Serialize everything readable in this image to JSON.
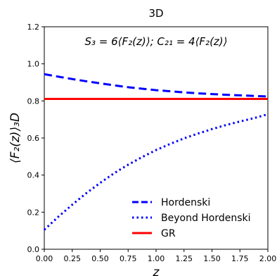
{
  "chart_data": {
    "type": "line",
    "title": "3D",
    "annotation": "S₃ = 6⟨F₂(z)⟩;  C₂₁ = 4⟨F₂(z)⟩",
    "xlabel": "z",
    "ylabel": "⟨F₂(z)⟩₃D",
    "xlim": [
      0.0,
      2.0
    ],
    "ylim": [
      0.0,
      1.2
    ],
    "xticks": [
      "0.00",
      "0.25",
      "0.50",
      "0.75",
      "1.00",
      "1.25",
      "1.50",
      "1.75",
      "2.00"
    ],
    "yticks": [
      "0.0",
      "0.2",
      "0.4",
      "0.6",
      "0.8",
      "1.0",
      "1.2"
    ],
    "grid": false,
    "legend_position": "bottom-right",
    "x": [
      0.0,
      0.125,
      0.25,
      0.375,
      0.5,
      0.625,
      0.75,
      0.875,
      1.0,
      1.125,
      1.25,
      1.375,
      1.5,
      1.625,
      1.75,
      1.875,
      2.0
    ],
    "series": [
      {
        "name": "Hordenski",
        "style": "dashed",
        "color": "#0000ff",
        "values": [
          0.944,
          0.931,
          0.918,
          0.906,
          0.895,
          0.884,
          0.874,
          0.866,
          0.858,
          0.852,
          0.846,
          0.841,
          0.837,
          0.833,
          0.83,
          0.827,
          0.824
        ]
      },
      {
        "name": "Beyond Hordenski",
        "style": "dotted",
        "color": "#0000ff",
        "values": [
          0.105,
          0.175,
          0.24,
          0.302,
          0.358,
          0.41,
          0.456,
          0.497,
          0.535,
          0.568,
          0.598,
          0.624,
          0.648,
          0.67,
          0.689,
          0.707,
          0.728
        ]
      },
      {
        "name": "GR",
        "style": "solid",
        "color": "#ff0000",
        "values": [
          0.811,
          0.811,
          0.811,
          0.811,
          0.811,
          0.811,
          0.811,
          0.811,
          0.811,
          0.811,
          0.811,
          0.811,
          0.811,
          0.811,
          0.811,
          0.811,
          0.811
        ]
      }
    ]
  }
}
